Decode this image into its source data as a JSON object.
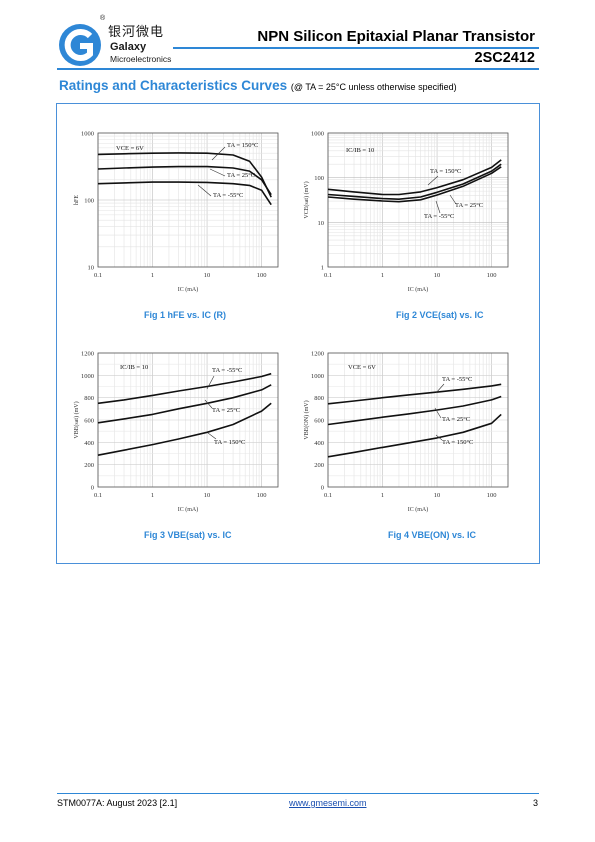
{
  "header": {
    "logo_cn": "银河微电",
    "logo_en1": "Galaxy",
    "logo_en2": "Microelectronics",
    "logo_reg": "®",
    "title": "NPN Silicon Epitaxial Planar Transistor",
    "part": "2SC2412",
    "accent": "#2e87d6"
  },
  "section": {
    "title": "Ratings and Characteristics Curves",
    "condition": "(@ TA = 25°C unless otherwise specified)"
  },
  "captions": {
    "fig1": "Fig 1    hFE vs. IC (R)",
    "fig2": "Fig 2    VCE(sat) vs. IC",
    "fig3": "Fig 3    VBE(sat) vs. IC",
    "fig4": "Fig 4    VBE(ON) vs. IC"
  },
  "chart_data": [
    {
      "id": "fig1",
      "type": "line",
      "xscale": "log",
      "yscale": "log",
      "xlim": [
        0.1,
        200
      ],
      "ylim": [
        10,
        1000
      ],
      "xticks": [
        "0.1",
        "1",
        "10",
        "100"
      ],
      "yticks": [
        "10",
        "100",
        "1000"
      ],
      "xlabel": "IC (mA)",
      "ylabel": "hFE",
      "condition": "VCE = 6V",
      "series": [
        {
          "name": "TA = 150°C",
          "x": [
            0.1,
            0.3,
            1,
            3,
            10,
            30,
            60,
            100,
            150
          ],
          "y": [
            480,
            490,
            500,
            505,
            500,
            470,
            380,
            220,
            110
          ]
        },
        {
          "name": "TA = 25°C",
          "x": [
            0.1,
            0.3,
            1,
            3,
            10,
            30,
            60,
            100,
            150
          ],
          "y": [
            290,
            300,
            310,
            315,
            315,
            300,
            270,
            200,
            120
          ]
        },
        {
          "name": "TA = -55°C",
          "x": [
            0.1,
            0.3,
            1,
            3,
            10,
            30,
            60,
            100,
            150
          ],
          "y": [
            175,
            180,
            185,
            185,
            183,
            175,
            165,
            140,
            85
          ]
        }
      ]
    },
    {
      "id": "fig2",
      "type": "line",
      "xscale": "log",
      "yscale": "log",
      "xlim": [
        0.1,
        200
      ],
      "ylim": [
        1,
        1000
      ],
      "xticks": [
        "0.1",
        "1",
        "10",
        "100"
      ],
      "yticks": [
        "1",
        "10",
        "100",
        "1000"
      ],
      "xlabel": "IC (mA)",
      "ylabel": "VCE(sat) (mV)",
      "condition": "IC/IB = 10",
      "series": [
        {
          "name": "TA = 150°C",
          "x": [
            0.1,
            0.3,
            1,
            2,
            5,
            10,
            30,
            100,
            150
          ],
          "y": [
            55,
            48,
            42,
            42,
            48,
            60,
            90,
            170,
            250
          ]
        },
        {
          "name": "TA = 25°C",
          "x": [
            0.1,
            0.3,
            1,
            2,
            5,
            10,
            30,
            100,
            150
          ],
          "y": [
            42,
            38,
            34,
            33,
            37,
            47,
            72,
            140,
            200
          ]
        },
        {
          "name": "TA = -55°C",
          "x": [
            0.1,
            0.3,
            1,
            2,
            5,
            10,
            30,
            100,
            150
          ],
          "y": [
            37,
            33,
            30,
            29,
            32,
            41,
            64,
            125,
            175
          ]
        }
      ]
    },
    {
      "id": "fig3",
      "type": "line",
      "xscale": "log",
      "yscale": "linear",
      "xlim": [
        0.1,
        200
      ],
      "ylim": [
        0,
        1200
      ],
      "xticks": [
        "0.1",
        "1",
        "10",
        "100"
      ],
      "yticks": [
        "0",
        "200",
        "400",
        "600",
        "800",
        "1000",
        "1200"
      ],
      "xlabel": "IC (mA)",
      "ylabel": "VBE(sat) (mV)",
      "condition": "IC/IB = 10",
      "series": [
        {
          "name": "TA = -55°C",
          "x": [
            0.1,
            0.3,
            1,
            3,
            10,
            30,
            100,
            150
          ],
          "y": [
            750,
            780,
            820,
            860,
            900,
            940,
            990,
            1015
          ]
        },
        {
          "name": "TA = 25°C",
          "x": [
            0.1,
            0.3,
            1,
            3,
            10,
            30,
            100,
            150
          ],
          "y": [
            575,
            610,
            650,
            700,
            750,
            800,
            870,
            915
          ]
        },
        {
          "name": "TA = 150°C",
          "x": [
            0.1,
            0.3,
            1,
            3,
            10,
            30,
            100,
            150
          ],
          "y": [
            285,
            330,
            380,
            430,
            490,
            560,
            680,
            750
          ]
        }
      ]
    },
    {
      "id": "fig4",
      "type": "line",
      "xscale": "log",
      "yscale": "linear",
      "xlim": [
        0.1,
        200
      ],
      "ylim": [
        0,
        1200
      ],
      "xticks": [
        "0.1",
        "1",
        "10",
        "100"
      ],
      "yticks": [
        "0",
        "200",
        "400",
        "600",
        "800",
        "1000",
        "1200"
      ],
      "xlabel": "IC (mA)",
      "ylabel": "VBE(ON) (mV)",
      "condition": "VCE = 6V",
      "series": [
        {
          "name": "TA = -55°C",
          "x": [
            0.1,
            0.3,
            1,
            3,
            10,
            30,
            100,
            150
          ],
          "y": [
            745,
            770,
            800,
            825,
            850,
            875,
            905,
            920
          ]
        },
        {
          "name": "TA = 25°C",
          "x": [
            0.1,
            0.3,
            1,
            3,
            10,
            30,
            100,
            150
          ],
          "y": [
            560,
            590,
            625,
            655,
            690,
            725,
            780,
            810
          ]
        },
        {
          "name": "TA = 150°C",
          "x": [
            0.1,
            0.3,
            1,
            3,
            10,
            30,
            100,
            150
          ],
          "y": [
            270,
            310,
            355,
            395,
            440,
            490,
            570,
            650
          ]
        }
      ]
    }
  ],
  "footer": {
    "doc_id": "STM0077A: August 2023 [2.1]",
    "website": "www.gmesemi.com",
    "page": "3"
  }
}
